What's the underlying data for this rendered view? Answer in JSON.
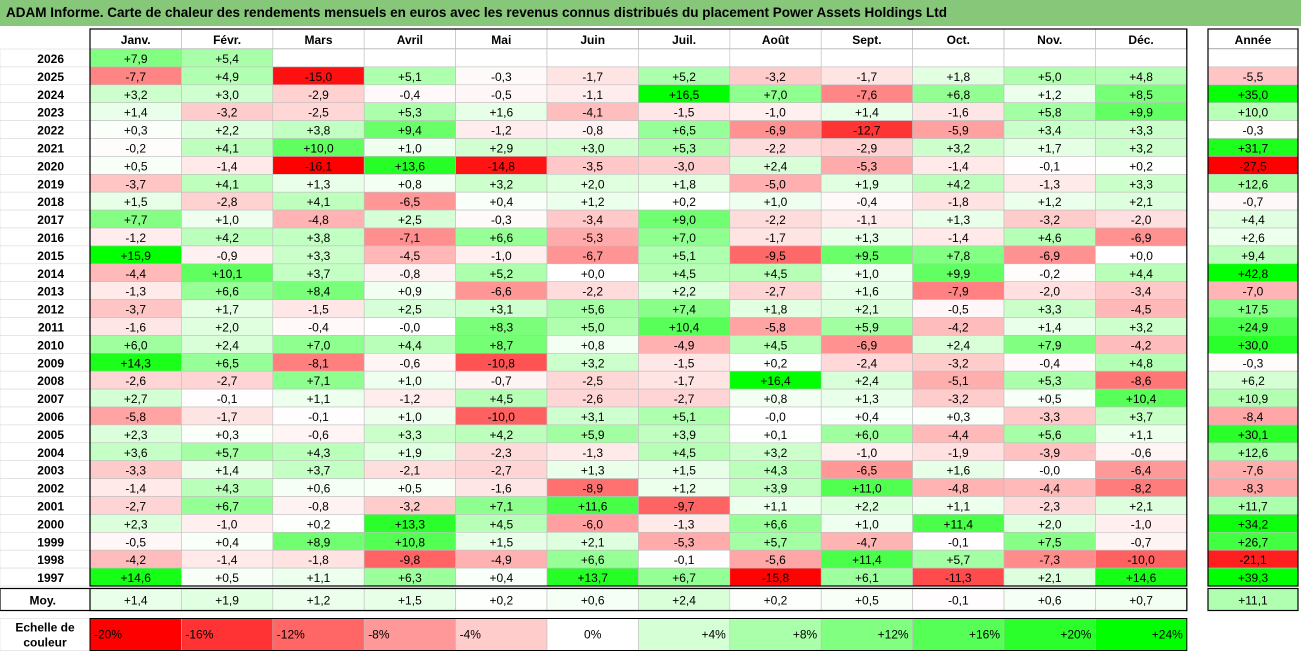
{
  "title": "ADAM Informe. Carte de chaleur des rendements mensuels en euros avec les revenus connus distribués du placement Power Assets Holdings Ltd",
  "chart_data": {
    "type": "heatmap",
    "title": "ADAM Informe. Carte de chaleur des rendements mensuels en euros avec les revenus connus distribués du placement Power Assets Holdings Ltd",
    "months": [
      "Janv.",
      "Févr.",
      "Mars",
      "Avril",
      "Mai",
      "Juin",
      "Juil.",
      "Août",
      "Sept.",
      "Oct.",
      "Nov.",
      "Déc."
    ],
    "year_header": "Année",
    "years": [
      2026,
      2025,
      2024,
      2023,
      2022,
      2021,
      2020,
      2019,
      2018,
      2017,
      2016,
      2015,
      2014,
      2013,
      2012,
      2011,
      2010,
      2009,
      2008,
      2007,
      2006,
      2005,
      2004,
      2003,
      2002,
      2001,
      2000,
      1999,
      1998,
      1997
    ],
    "values": [
      [
        7.9,
        5.4,
        null,
        null,
        null,
        null,
        null,
        null,
        null,
        null,
        null,
        null
      ],
      [
        -7.7,
        4.9,
        -15.0,
        5.1,
        -0.3,
        -1.7,
        5.2,
        -3.2,
        -1.7,
        1.8,
        5.0,
        4.8
      ],
      [
        3.2,
        3.0,
        -2.9,
        -0.4,
        -0.5,
        -1.1,
        16.5,
        7.0,
        -7.6,
        6.8,
        1.2,
        8.5
      ],
      [
        1.4,
        -3.2,
        -2.5,
        5.3,
        1.6,
        -4.1,
        -1.5,
        -1.0,
        1.4,
        -1.6,
        5.8,
        9.9
      ],
      [
        0.3,
        2.2,
        3.8,
        9.4,
        -1.2,
        -0.8,
        6.5,
        -6.9,
        -12.7,
        -5.9,
        3.4,
        3.3
      ],
      [
        -0.2,
        4.1,
        10.0,
        1.0,
        2.9,
        3.0,
        5.3,
        -2.2,
        -2.9,
        3.2,
        1.7,
        3.2
      ],
      [
        0.5,
        -1.4,
        -16.1,
        13.6,
        -14.8,
        -3.5,
        -3.0,
        2.4,
        -5.3,
        -1.4,
        -0.1,
        0.2
      ],
      [
        -3.7,
        4.1,
        1.3,
        0.8,
        3.2,
        2.0,
        1.8,
        -5.0,
        1.9,
        4.2,
        -1.3,
        3.3
      ],
      [
        1.5,
        -2.8,
        4.1,
        -6.5,
        0.4,
        1.2,
        0.2,
        1.0,
        -0.4,
        -1.8,
        1.2,
        2.1
      ],
      [
        7.7,
        1.0,
        -4.8,
        2.5,
        -0.3,
        -3.4,
        9.0,
        -2.2,
        -1.1,
        1.3,
        -3.2,
        -2.0
      ],
      [
        -1.2,
        4.2,
        3.8,
        -7.1,
        6.6,
        -5.3,
        7.0,
        -1.7,
        1.3,
        -1.4,
        4.6,
        -6.9
      ],
      [
        15.9,
        -0.9,
        3.3,
        -4.5,
        -1.0,
        -6.7,
        5.1,
        -9.5,
        9.5,
        7.8,
        -6.9,
        0.0
      ],
      [
        -4.4,
        10.1,
        3.7,
        -0.8,
        5.2,
        0.0,
        4.5,
        4.5,
        1.0,
        9.9,
        -0.2,
        4.4
      ],
      [
        -1.3,
        6.6,
        8.4,
        0.9,
        -6.6,
        -2.2,
        2.2,
        -2.7,
        1.6,
        -7.9,
        -2.0,
        -3.4
      ],
      [
        -3.7,
        1.7,
        -1.5,
        2.5,
        3.1,
        5.6,
        7.4,
        1.8,
        2.1,
        -0.5,
        3.3,
        -4.5
      ],
      [
        -1.6,
        2.0,
        -0.4,
        -0.0,
        8.3,
        5.0,
        10.4,
        -5.8,
        5.9,
        -4.2,
        1.4,
        3.2
      ],
      [
        6.0,
        2.4,
        7.0,
        4.4,
        8.7,
        0.8,
        -4.9,
        4.5,
        -6.9,
        2.4,
        7.9,
        -4.2
      ],
      [
        14.3,
        6.5,
        -8.1,
        -0.6,
        -10.8,
        3.2,
        -1.5,
        0.2,
        -2.4,
        -3.2,
        -0.4,
        4.8
      ],
      [
        -2.6,
        -2.7,
        7.1,
        1.0,
        -0.7,
        -2.5,
        -1.7,
        16.4,
        2.4,
        -5.1,
        5.3,
        -8.6
      ],
      [
        2.7,
        -0.1,
        1.1,
        -1.2,
        4.5,
        -2.6,
        -2.7,
        0.8,
        1.3,
        -3.2,
        0.5,
        10.4
      ],
      [
        -5.8,
        -1.7,
        -0.1,
        1.0,
        -10.0,
        3.1,
        5.1,
        -0.0,
        0.4,
        0.3,
        -3.3,
        3.7
      ],
      [
        2.3,
        0.3,
        -0.6,
        3.3,
        4.2,
        5.9,
        3.9,
        0.1,
        6.0,
        -4.4,
        5.6,
        1.1
      ],
      [
        3.6,
        5.7,
        4.3,
        1.9,
        -2.3,
        -1.3,
        4.5,
        3.2,
        -1.0,
        -1.9,
        -3.9,
        -0.6
      ],
      [
        -3.3,
        1.4,
        3.7,
        -2.1,
        -2.7,
        1.3,
        1.5,
        4.3,
        -6.5,
        1.6,
        -0.0,
        -6.4
      ],
      [
        -1.4,
        4.3,
        0.6,
        0.5,
        -1.6,
        -8.9,
        1.2,
        3.9,
        11.0,
        -4.8,
        -4.4,
        -8.2
      ],
      [
        -2.7,
        6.7,
        -0.8,
        -3.2,
        7.1,
        11.6,
        -9.7,
        1.1,
        2.2,
        1.1,
        -2.3,
        2.1
      ],
      [
        2.3,
        -1.0,
        0.2,
        13.3,
        4.5,
        -6.0,
        -1.3,
        6.6,
        1.0,
        11.4,
        2.0,
        -1.0
      ],
      [
        -0.5,
        0.4,
        8.9,
        10.8,
        1.5,
        2.1,
        -5.3,
        5.7,
        -4.7,
        -0.1,
        7.5,
        -0.7
      ],
      [
        -4.2,
        -1.4,
        -1.8,
        -9.8,
        -4.9,
        6.6,
        -0.1,
        -5.6,
        11.4,
        5.7,
        -7.3,
        -10.0
      ],
      [
        14.6,
        0.5,
        1.1,
        6.3,
        0.4,
        13.7,
        6.7,
        -15.8,
        6.1,
        -11.3,
        2.1,
        14.6
      ]
    ],
    "annual": [
      null,
      -5.5,
      35.0,
      10.0,
      -0.3,
      31.7,
      -27.5,
      12.6,
      -0.7,
      4.4,
      2.6,
      9.4,
      42.8,
      -7.0,
      17.5,
      24.9,
      30.0,
      -0.3,
      6.2,
      10.9,
      -8.4,
      30.1,
      12.6,
      -7.6,
      -8.3,
      11.7,
      34.2,
      26.7,
      -21.1,
      39.3
    ],
    "average_label": "Moy.",
    "average": [
      1.4,
      1.9,
      1.2,
      1.5,
      0.2,
      0.6,
      2.4,
      0.2,
      0.5,
      -0.1,
      0.6,
      0.7
    ],
    "average_annual": 11.1,
    "scale_label_1": "Echelle de",
    "scale_label_2": "couleur",
    "scale_values": [
      -20,
      -16,
      -12,
      -8,
      -4,
      0,
      4,
      8,
      12,
      16,
      20,
      24
    ],
    "scale_text": [
      "-20%",
      "-16%",
      "-12%",
      "-8%",
      "-4%",
      "0%",
      "+4%",
      "+8%",
      "+12%",
      "+16%",
      "+20%",
      "+24%"
    ],
    "colors": {
      "negative_max": "#ff0000",
      "neutral": "#ffffff",
      "positive_max": "#00ff00",
      "title_background": "#86c77a"
    }
  }
}
